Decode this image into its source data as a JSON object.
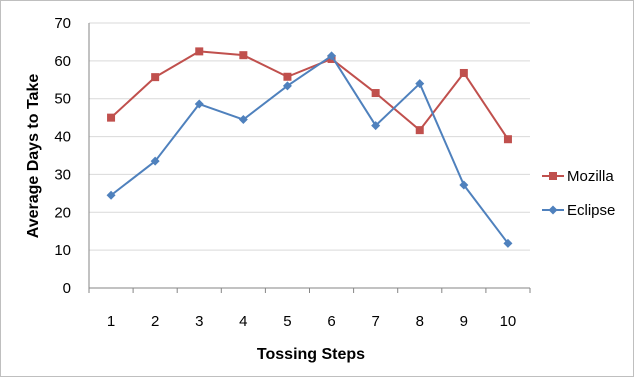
{
  "chart_data": {
    "type": "line",
    "title": "",
    "xlabel": "Tossing Steps",
    "ylabel": "Average Days to Take",
    "categories": [
      "1",
      "2",
      "3",
      "4",
      "5",
      "6",
      "7",
      "8",
      "9",
      "10"
    ],
    "ylim": [
      0,
      70
    ],
    "yticks": [
      "0",
      "10",
      "20",
      "30",
      "40",
      "50",
      "60",
      "70"
    ],
    "grid": "horizontal",
    "legend_position": "right",
    "series": [
      {
        "name": "Mozilla",
        "color": "#c0504d",
        "marker": "square",
        "values": [
          45,
          55.7,
          62.5,
          61.5,
          55.8,
          60.5,
          51.5,
          41.7,
          56.8,
          39.3
        ]
      },
      {
        "name": "Eclipse",
        "color": "#4f81bd",
        "marker": "diamond",
        "values": [
          24.5,
          33.5,
          48.6,
          44.5,
          53.4,
          61.3,
          42.9,
          54,
          27.2,
          11.8
        ]
      }
    ]
  }
}
